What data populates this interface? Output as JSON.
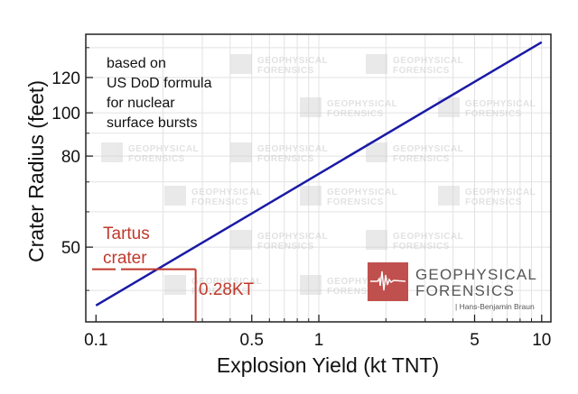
{
  "chart_data": {
    "type": "line",
    "xlabel": "Explosion Yield (kt TNT)",
    "ylabel": "Crater Radius (feet)",
    "x_scale": "log",
    "y_scale": "log",
    "xlim": [
      0.09,
      11
    ],
    "ylim": [
      34,
      150
    ],
    "grid": true,
    "x_ticks": [
      0.1,
      0.5,
      1,
      5,
      10
    ],
    "x_tick_labels": [
      "0.1",
      "0.5",
      "1",
      "5",
      "10"
    ],
    "y_ticks": [
      50,
      80,
      100,
      120
    ],
    "y_tick_labels": [
      "50",
      "80",
      "100",
      "120"
    ],
    "series": [
      {
        "x": [
          0.1,
          10
        ],
        "y": [
          37,
          144
        ],
        "color": "#1a1aa6"
      }
    ],
    "annotation_note": [
      "based on",
      "US DoD formula",
      "for nuclear",
      "surface bursts"
    ],
    "marker": {
      "label": [
        "Tartus",
        "crater"
      ],
      "radius": 44.6,
      "yield": 0.28,
      "yield_label": "0.28KT",
      "color": "#c0392b"
    }
  },
  "logo": {
    "line1": "GEOPHYSICAL",
    "line2": "FORENSICS",
    "author": "| Hans-Benjamin Braun",
    "color": "#c0504d"
  }
}
